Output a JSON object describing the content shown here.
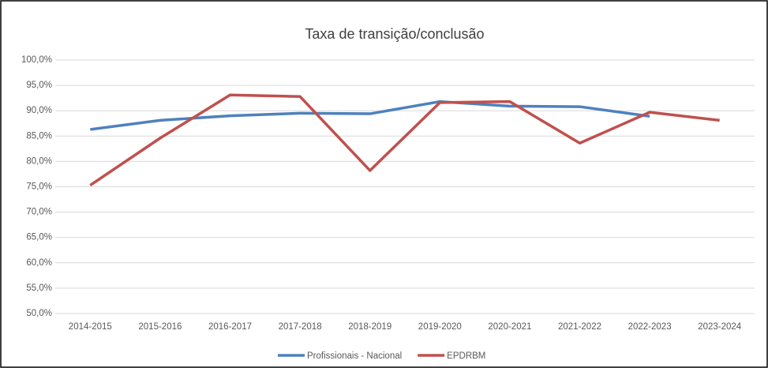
{
  "chart_data": {
    "type": "line",
    "title": "Taxa de transição/conclusão",
    "categories": [
      "2014-2015",
      "2015-2016",
      "2016-2017",
      "2017-2018",
      "2018-2019",
      "2019-2020",
      "2020-2021",
      "2021-2022",
      "2022-2023",
      "2023-2024"
    ],
    "series": [
      {
        "name": "Profissionais - Nacional",
        "color": "#4f81bd",
        "values": [
          86.3,
          88.1,
          89.0,
          89.5,
          89.4,
          91.8,
          90.9,
          90.8,
          88.9,
          null
        ]
      },
      {
        "name": "EPDRBM",
        "color": "#c0504d",
        "values": [
          75.3,
          84.6,
          93.1,
          92.8,
          78.2,
          91.6,
          91.8,
          83.6,
          89.7,
          88.1
        ]
      }
    ],
    "ylim": [
      50,
      100
    ],
    "yticks": [
      {
        "value": 50,
        "label": "50,0%"
      },
      {
        "value": 55,
        "label": "55,0%"
      },
      {
        "value": 60,
        "label": "60,0%"
      },
      {
        "value": 65,
        "label": "65,0%"
      },
      {
        "value": 70,
        "label": "70,0%"
      },
      {
        "value": 75,
        "label": "75,0%"
      },
      {
        "value": 80,
        "label": "80,0%"
      },
      {
        "value": 85,
        "label": "85,0%"
      },
      {
        "value": 90,
        "label": "90,0%"
      },
      {
        "value": 95,
        "label": "95,0%"
      },
      {
        "value": 100,
        "label": "100,0%"
      }
    ],
    "grid": true,
    "legend": "bottom"
  }
}
